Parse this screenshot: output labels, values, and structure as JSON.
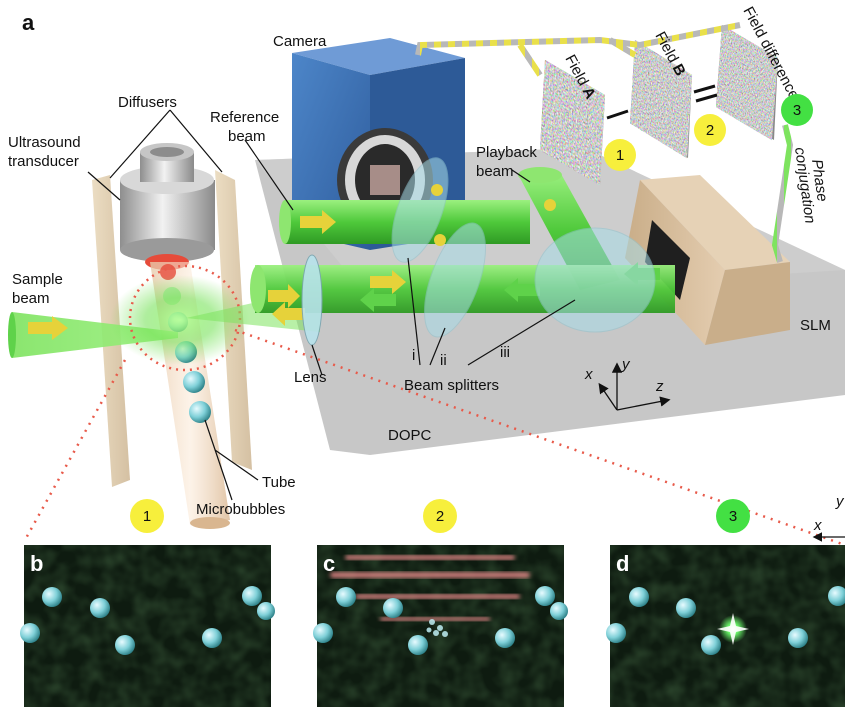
{
  "panel_letters": {
    "a": "a",
    "b": "b",
    "c": "c",
    "d": "d"
  },
  "labels": {
    "camera": "Camera",
    "diffusers": "Diffusers",
    "ultrasound_line1": "Ultrasound",
    "ultrasound_line2": "transducer",
    "reference_line1": "Reference",
    "reference_line2": "beam",
    "playback_line1": "Playback",
    "playback_line2": "beam",
    "sample_line1": "Sample",
    "sample_line2": "beam",
    "lens": "Lens",
    "beam_splitters": "Beam splitters",
    "dopc": "DOPC",
    "slm": "SLM",
    "tube": "Tube",
    "microbubbles": "Microbubbles",
    "phase_line1": "Phase",
    "phase_line2": "conjugation",
    "roman_i": "i",
    "roman_ii": "ii",
    "roman_iii": "iii"
  },
  "fields": {
    "a_prefix": "Field ",
    "a_bold": "A",
    "b_prefix": "Field ",
    "b_bold": "B",
    "difference": "Field difference"
  },
  "axes_main": {
    "x": "x",
    "y": "y",
    "z": "z"
  },
  "axes_small": {
    "x": "x",
    "y": "y"
  },
  "badges": {
    "s1": "1",
    "s2": "2",
    "s3": "3",
    "b1": "1",
    "b2": "2",
    "b3": "3"
  },
  "colors": {
    "badge_yellow": "#f7ef3c",
    "badge_green": "#43e043",
    "beam_green": "#5fd24a",
    "camera_blue": "#3f6fb3",
    "slm_tan": "#d8bf9e",
    "table_gray": "#c9c9c9",
    "speckle_bg": "#0e1b10"
  }
}
